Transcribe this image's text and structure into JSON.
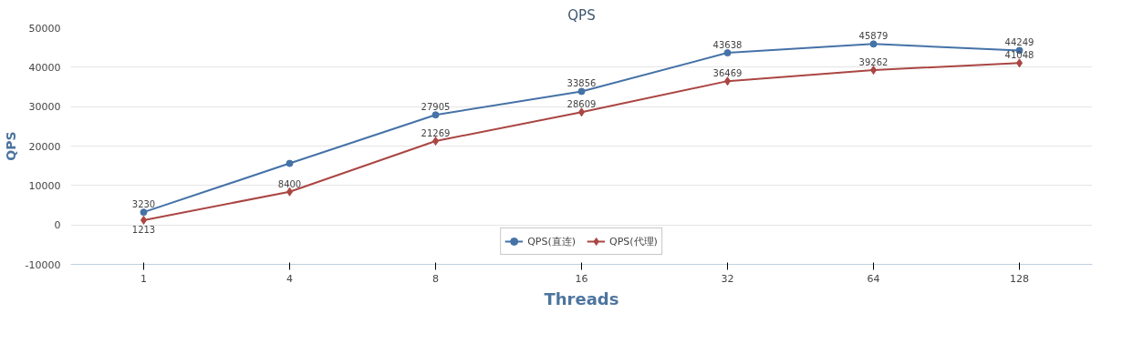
{
  "chart_data": {
    "type": "line",
    "title": "QPS",
    "xlabel": "Threads",
    "ylabel": "QPS",
    "categories": [
      "1",
      "4",
      "8",
      "16",
      "32",
      "64",
      "128"
    ],
    "ylim": [
      -10000,
      50000
    ],
    "yticks": [
      -10000,
      0,
      10000,
      20000,
      30000,
      40000,
      50000
    ],
    "grid": "y",
    "legend": "bottom",
    "line_style": "solid",
    "series": [
      {
        "name": "QPS(直连)",
        "color": "#4572a7",
        "marker": "circle",
        "values": [
          3230,
          15600,
          27905,
          33856,
          43638,
          45879,
          44249
        ],
        "value_labels": [
          "3230",
          null,
          "27905",
          "33856",
          "43638",
          "45879",
          "44249"
        ]
      },
      {
        "name": "QPS(代理)",
        "color": "#aa4643",
        "marker": "diamond",
        "values": [
          1213,
          8400,
          21269,
          28609,
          36469,
          39262,
          41048
        ],
        "value_labels": [
          "1213",
          "8400",
          "21269",
          "28609",
          "36469",
          "39262",
          "41048"
        ]
      }
    ]
  }
}
